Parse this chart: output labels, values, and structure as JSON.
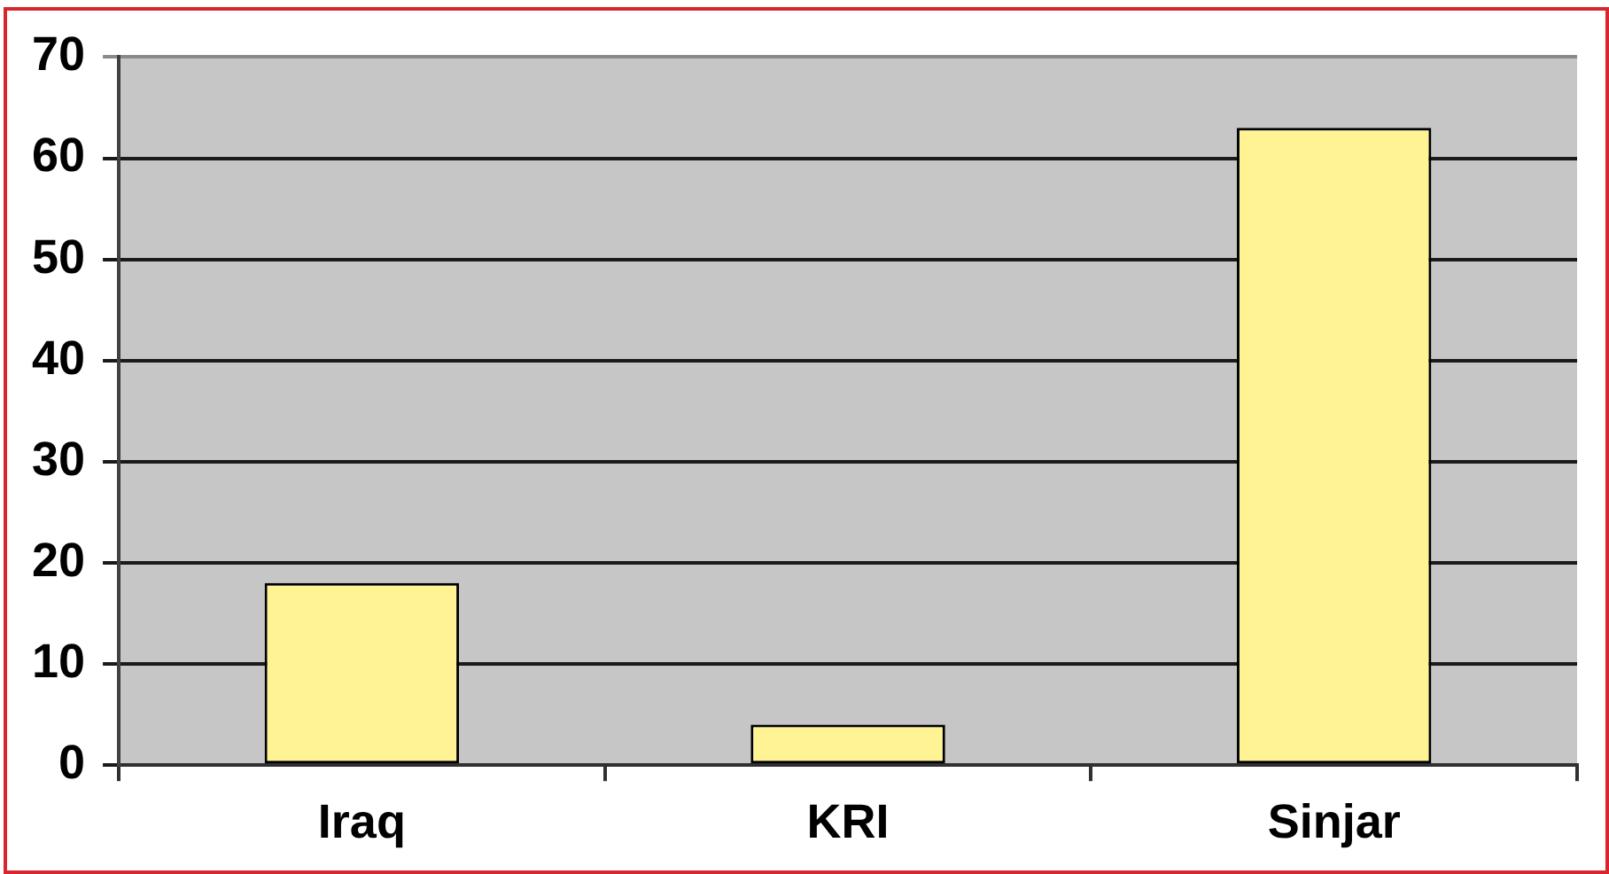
{
  "chart_data": {
    "type": "bar",
    "categories": [
      "Iraq",
      "KRI",
      "Sinjar"
    ],
    "values": [
      18,
      4,
      63
    ],
    "color": "#fff394",
    "ylim": [
      0,
      70
    ],
    "yticks": [
      0,
      10,
      20,
      30,
      40,
      50,
      60,
      70
    ],
    "grid": "y"
  }
}
